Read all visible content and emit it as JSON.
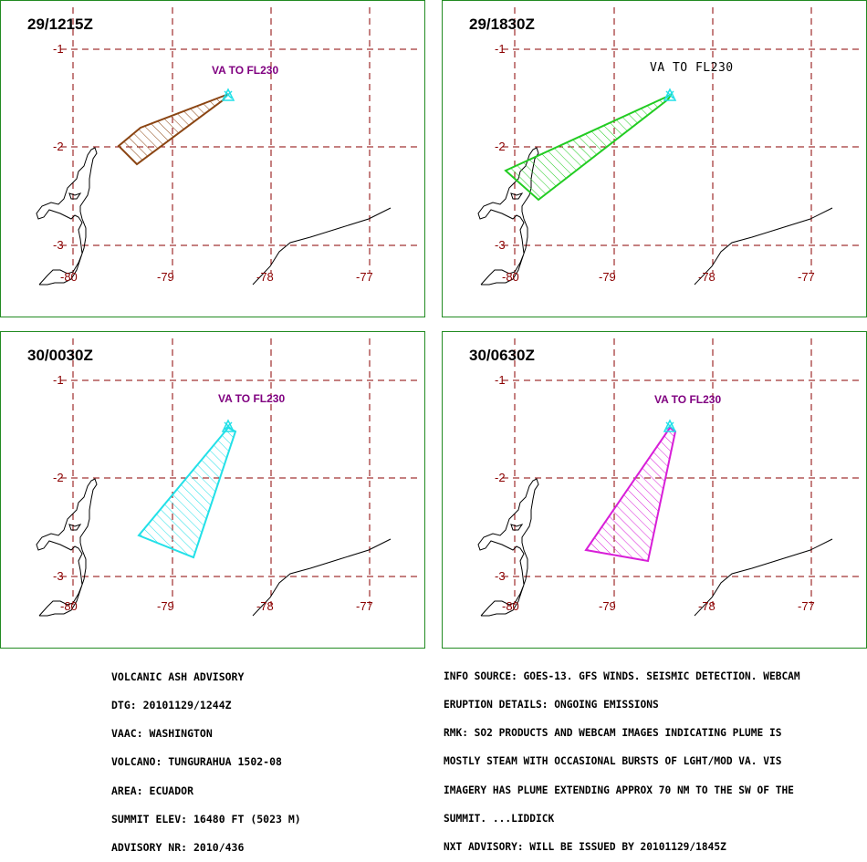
{
  "panels": [
    {
      "title": "29/1215Z",
      "va_label": "VA TO FL230",
      "plume_color": "#8b4513"
    },
    {
      "title": "29/1830Z",
      "va_label": "VA TO FL230",
      "plume_color": "#22cc22"
    },
    {
      "title": "30/0030Z",
      "va_label": "VA TO FL230",
      "plume_color": "#22e0e8"
    },
    {
      "title": "30/0630Z",
      "va_label": "VA TO FL230",
      "plume_color": "#d81ed8"
    }
  ],
  "axes": {
    "lat_labels": [
      "-1",
      "-2",
      "-3"
    ],
    "lon_labels": [
      "-80",
      "-79",
      "-78",
      "-77"
    ]
  },
  "colors": {
    "grid": "#8b0000",
    "frame": "#228b22",
    "coast": "#000000",
    "va_text": "#800080"
  },
  "advisory_left": [
    "VOLCANIC ASH ADVISORY",
    "DTG: 20101129/1244Z",
    "VAAC: WASHINGTON",
    "VOLCANO: TUNGURAHUA 1502-08",
    "AREA: ECUADOR",
    "SUMMIT ELEV: 16480 FT (5023 M)",
    "ADVISORY NR: 2010/436"
  ],
  "advisory_right": [
    "INFO SOURCE: GOES-13. GFS WINDS. SEISMIC DETECTION. WEBCAM",
    "ERUPTION DETAILS: ONGOING EMISSIONS",
    "RMK: SO2 PRODUCTS AND WEBCAM IMAGES INDICATING PLUME IS",
    "MOSTLY STEAM WITH OCCASIONAL BURSTS OF LGHT/MOD VA. VIS",
    "IMAGERY HAS PLUME EXTENDING APPROX 70 NM TO THE SW OF THE",
    "SUMMIT. ...LIDDICK",
    "NXT ADVISORY: WILL BE ISSUED BY 20101129/1845Z"
  ]
}
